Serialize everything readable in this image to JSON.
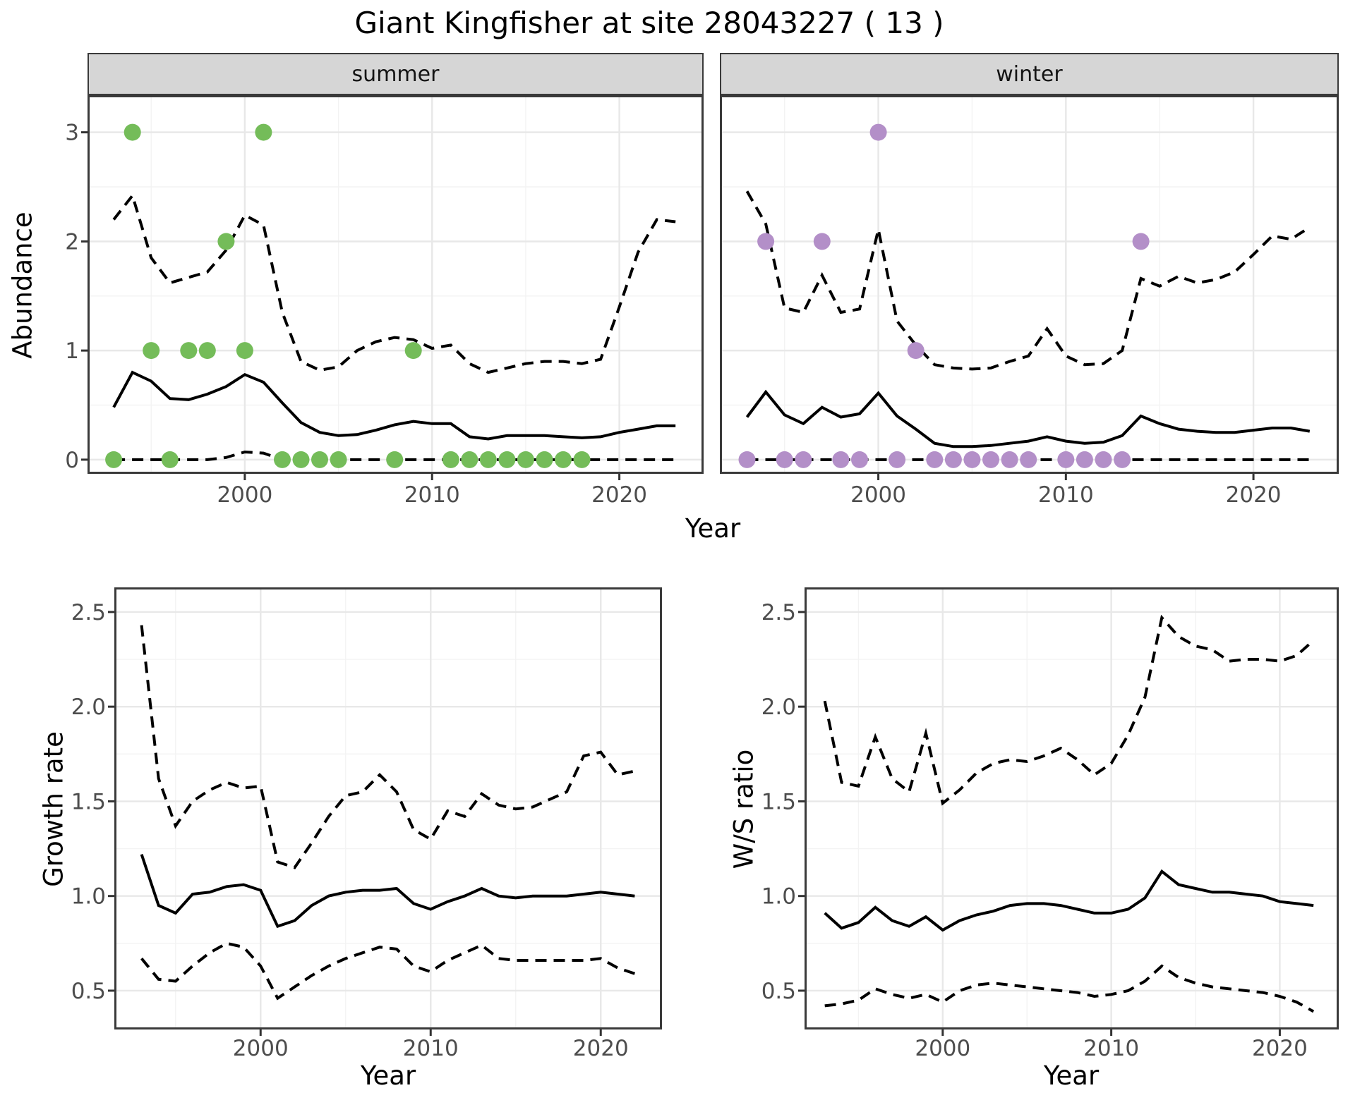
{
  "title": "Giant Kingfisher at site 28043227 ( 13 )",
  "facets": {
    "summer_label": "summer",
    "winter_label": "winter"
  },
  "axes": {
    "abundance_title": "Abundance",
    "growth_title": "Growth rate",
    "ws_title": "W/S ratio",
    "year_title": "Year"
  },
  "colors": {
    "summer_dot": "#74bc59",
    "winter_dot": "#b38fc8",
    "line": "#000000",
    "grid_major": "#e8e8e8",
    "grid_minor": "#f3f3f3",
    "panel_border": "#3a3a3a",
    "strip_bg": "#d6d6d6",
    "tick_label": "#4d4d4d",
    "tick_mark": "#333333"
  },
  "chart_data": [
    {
      "type": "line",
      "name": "abundance-summer",
      "facet": "summer",
      "ylabel": "Abundance",
      "xlabel": "Year",
      "x_ticks": [
        2000,
        2010,
        2020
      ],
      "y_ticks": [
        0,
        1,
        2,
        3
      ],
      "y_tick_format": "int",
      "x_range": [
        1991.6,
        2024.5
      ],
      "y_range": [
        -0.13,
        3.34
      ],
      "show_y_labels": true,
      "years": [
        1993,
        1994,
        1995,
        1996,
        1997,
        1998,
        1999,
        2000,
        2001,
        2002,
        2003,
        2004,
        2005,
        2006,
        2007,
        2008,
        2009,
        2010,
        2011,
        2012,
        2013,
        2014,
        2015,
        2016,
        2017,
        2018,
        2019,
        2020,
        2021,
        2022,
        2023
      ],
      "series": [
        {
          "name": "median",
          "style": "solid",
          "values": [
            0.48,
            0.8,
            0.72,
            0.56,
            0.55,
            0.6,
            0.67,
            0.78,
            0.71,
            0.52,
            0.34,
            0.25,
            0.22,
            0.23,
            0.27,
            0.32,
            0.35,
            0.33,
            0.33,
            0.21,
            0.19,
            0.22,
            0.22,
            0.22,
            0.21,
            0.2,
            0.21,
            0.25,
            0.28,
            0.31,
            0.31
          ]
        },
        {
          "name": "upper_ci",
          "style": "dashed",
          "values": [
            2.2,
            2.42,
            1.85,
            1.62,
            1.67,
            1.72,
            1.92,
            2.24,
            2.15,
            1.35,
            0.9,
            0.82,
            0.85,
            1.0,
            1.08,
            1.12,
            1.1,
            1.02,
            1.05,
            0.88,
            0.8,
            0.84,
            0.88,
            0.9,
            0.9,
            0.88,
            0.92,
            1.4,
            1.9,
            2.2,
            2.18
          ]
        },
        {
          "name": "lower_ci",
          "style": "dashed",
          "values": [
            0,
            0,
            0,
            0,
            0,
            0,
            0.02,
            0.07,
            0.06,
            0,
            0,
            0,
            0,
            0,
            0,
            0,
            0,
            0,
            0,
            0,
            0,
            0,
            0,
            0,
            0,
            0,
            0,
            0,
            0,
            0,
            0
          ]
        }
      ],
      "points": {
        "name": "observed-count",
        "color_key": "summer_dot",
        "data": [
          [
            1993,
            0
          ],
          [
            1994,
            3
          ],
          [
            1995,
            1
          ],
          [
            1996,
            0
          ],
          [
            1997,
            1
          ],
          [
            1998,
            1
          ],
          [
            1999,
            2
          ],
          [
            2000,
            1
          ],
          [
            2001,
            3
          ],
          [
            2002,
            0
          ],
          [
            2003,
            0
          ],
          [
            2004,
            0
          ],
          [
            2005,
            0
          ],
          [
            2008,
            0
          ],
          [
            2009,
            1
          ],
          [
            2011,
            0
          ],
          [
            2012,
            0
          ],
          [
            2013,
            0
          ],
          [
            2014,
            0
          ],
          [
            2015,
            0
          ],
          [
            2016,
            0
          ],
          [
            2017,
            0
          ],
          [
            2018,
            0
          ]
        ]
      }
    },
    {
      "type": "line",
      "name": "abundance-winter",
      "facet": "winter",
      "ylabel": "Abundance",
      "xlabel": "Year",
      "x_ticks": [
        2000,
        2010,
        2020
      ],
      "y_ticks": [
        0,
        1,
        2,
        3
      ],
      "y_tick_format": "int",
      "x_range": [
        1991.55,
        2024.55
      ],
      "y_range": [
        -0.13,
        3.34
      ],
      "show_y_labels": false,
      "years": [
        1993,
        1994,
        1995,
        1996,
        1997,
        1998,
        1999,
        2000,
        2001,
        2002,
        2003,
        2004,
        2005,
        2006,
        2007,
        2008,
        2009,
        2010,
        2011,
        2012,
        2013,
        2014,
        2015,
        2016,
        2017,
        2018,
        2019,
        2020,
        2021,
        2022,
        2023
      ],
      "series": [
        {
          "name": "median",
          "style": "solid",
          "values": [
            0.39,
            0.62,
            0.41,
            0.33,
            0.48,
            0.39,
            0.42,
            0.61,
            0.4,
            0.28,
            0.15,
            0.12,
            0.12,
            0.13,
            0.15,
            0.17,
            0.21,
            0.17,
            0.15,
            0.16,
            0.22,
            0.4,
            0.33,
            0.28,
            0.26,
            0.25,
            0.25,
            0.27,
            0.29,
            0.29,
            0.26
          ]
        },
        {
          "name": "upper_ci",
          "style": "dashed",
          "values": [
            2.46,
            2.16,
            1.39,
            1.35,
            1.69,
            1.35,
            1.38,
            2.11,
            1.27,
            1.05,
            0.87,
            0.84,
            0.83,
            0.84,
            0.9,
            0.95,
            1.2,
            0.95,
            0.87,
            0.88,
            1.0,
            1.66,
            1.59,
            1.68,
            1.62,
            1.65,
            1.72,
            1.88,
            2.05,
            2.02,
            2.13
          ]
        },
        {
          "name": "lower_ci",
          "style": "dashed",
          "values": [
            0,
            0,
            0,
            0,
            0,
            0,
            0,
            0,
            0,
            0,
            0,
            0,
            0,
            0,
            0,
            0,
            0,
            0,
            0,
            0,
            0,
            0,
            0,
            0,
            0,
            0,
            0,
            0,
            0,
            0,
            0
          ]
        }
      ],
      "points": {
        "name": "observed-count",
        "color_key": "winter_dot",
        "data": [
          [
            1993,
            0
          ],
          [
            1994,
            2
          ],
          [
            1995,
            0
          ],
          [
            1996,
            0
          ],
          [
            1997,
            2
          ],
          [
            1998,
            0
          ],
          [
            1999,
            0
          ],
          [
            2000,
            3
          ],
          [
            2001,
            0
          ],
          [
            2002,
            1
          ],
          [
            2003,
            0
          ],
          [
            2004,
            0
          ],
          [
            2005,
            0
          ],
          [
            2006,
            0
          ],
          [
            2007,
            0
          ],
          [
            2008,
            0
          ],
          [
            2010,
            0
          ],
          [
            2011,
            0
          ],
          [
            2012,
            0
          ],
          [
            2013,
            0
          ],
          [
            2014,
            2
          ]
        ]
      }
    },
    {
      "type": "line",
      "name": "growth-rate",
      "facet": null,
      "ylabel": "Growth rate",
      "xlabel": "Year",
      "x_ticks": [
        2000,
        2010,
        2020
      ],
      "y_ticks": [
        0.5,
        1.0,
        1.5,
        2.0,
        2.5
      ],
      "y_tick_format": "one_decimal",
      "x_range": [
        1991.4,
        2023.6
      ],
      "y_range": [
        0.295,
        2.63
      ],
      "show_y_labels": true,
      "years": [
        1993,
        1994,
        1995,
        1996,
        1997,
        1998,
        1999,
        2000,
        2001,
        2002,
        2003,
        2004,
        2005,
        2006,
        2007,
        2008,
        2009,
        2010,
        2011,
        2012,
        2013,
        2014,
        2015,
        2016,
        2017,
        2018,
        2019,
        2020,
        2021,
        2022
      ],
      "series": [
        {
          "name": "median",
          "style": "solid",
          "values": [
            1.22,
            0.95,
            0.91,
            1.01,
            1.02,
            1.05,
            1.06,
            1.03,
            0.84,
            0.87,
            0.95,
            1.0,
            1.02,
            1.03,
            1.03,
            1.04,
            0.96,
            0.93,
            0.97,
            1.0,
            1.04,
            1.0,
            0.99,
            1.0,
            1.0,
            1.0,
            1.01,
            1.02,
            1.01,
            1.0
          ]
        },
        {
          "name": "upper_ci",
          "style": "dashed",
          "values": [
            2.43,
            1.62,
            1.37,
            1.5,
            1.56,
            1.6,
            1.57,
            1.58,
            1.18,
            1.15,
            1.28,
            1.42,
            1.53,
            1.55,
            1.64,
            1.55,
            1.35,
            1.3,
            1.45,
            1.42,
            1.54,
            1.48,
            1.46,
            1.47,
            1.51,
            1.55,
            1.74,
            1.76,
            1.64,
            1.66
          ]
        },
        {
          "name": "lower_ci",
          "style": "dashed",
          "values": [
            0.67,
            0.56,
            0.55,
            0.63,
            0.7,
            0.75,
            0.73,
            0.63,
            0.46,
            0.52,
            0.58,
            0.63,
            0.67,
            0.7,
            0.73,
            0.72,
            0.63,
            0.6,
            0.66,
            0.7,
            0.74,
            0.67,
            0.66,
            0.66,
            0.66,
            0.66,
            0.66,
            0.67,
            0.62,
            0.59
          ]
        }
      ],
      "points": null
    },
    {
      "type": "line",
      "name": "ws-ratio",
      "facet": null,
      "ylabel": "W/S ratio",
      "xlabel": "Year",
      "x_ticks": [
        2000,
        2010,
        2020
      ],
      "y_ticks": [
        0.5,
        1.0,
        1.5,
        2.0,
        2.5
      ],
      "y_tick_format": "one_decimal",
      "x_range": [
        1991.8,
        2023.5
      ],
      "y_range": [
        0.295,
        2.63
      ],
      "show_y_labels": true,
      "years": [
        1993,
        1994,
        1995,
        1996,
        1997,
        1998,
        1999,
        2000,
        2001,
        2002,
        2003,
        2004,
        2005,
        2006,
        2007,
        2008,
        2009,
        2010,
        2011,
        2012,
        2013,
        2014,
        2015,
        2016,
        2017,
        2018,
        2019,
        2020,
        2021,
        2022
      ],
      "series": [
        {
          "name": "median",
          "style": "solid",
          "values": [
            0.91,
            0.83,
            0.86,
            0.94,
            0.87,
            0.84,
            0.89,
            0.82,
            0.87,
            0.9,
            0.92,
            0.95,
            0.96,
            0.96,
            0.95,
            0.93,
            0.91,
            0.91,
            0.93,
            0.99,
            1.13,
            1.06,
            1.04,
            1.02,
            1.02,
            1.01,
            1.0,
            0.97,
            0.96,
            0.95
          ]
        },
        {
          "name": "upper_ci",
          "style": "dashed",
          "values": [
            2.03,
            1.6,
            1.58,
            1.84,
            1.62,
            1.55,
            1.86,
            1.49,
            1.56,
            1.65,
            1.7,
            1.72,
            1.71,
            1.74,
            1.78,
            1.72,
            1.64,
            1.7,
            1.85,
            2.05,
            2.47,
            2.37,
            2.32,
            2.3,
            2.24,
            2.25,
            2.25,
            2.24,
            2.27,
            2.35
          ]
        },
        {
          "name": "lower_ci",
          "style": "dashed",
          "values": [
            0.42,
            0.43,
            0.45,
            0.51,
            0.48,
            0.46,
            0.48,
            0.44,
            0.5,
            0.53,
            0.54,
            0.53,
            0.52,
            0.51,
            0.5,
            0.49,
            0.47,
            0.48,
            0.5,
            0.55,
            0.63,
            0.57,
            0.54,
            0.52,
            0.51,
            0.5,
            0.49,
            0.47,
            0.44,
            0.39
          ]
        }
      ],
      "points": null
    }
  ]
}
